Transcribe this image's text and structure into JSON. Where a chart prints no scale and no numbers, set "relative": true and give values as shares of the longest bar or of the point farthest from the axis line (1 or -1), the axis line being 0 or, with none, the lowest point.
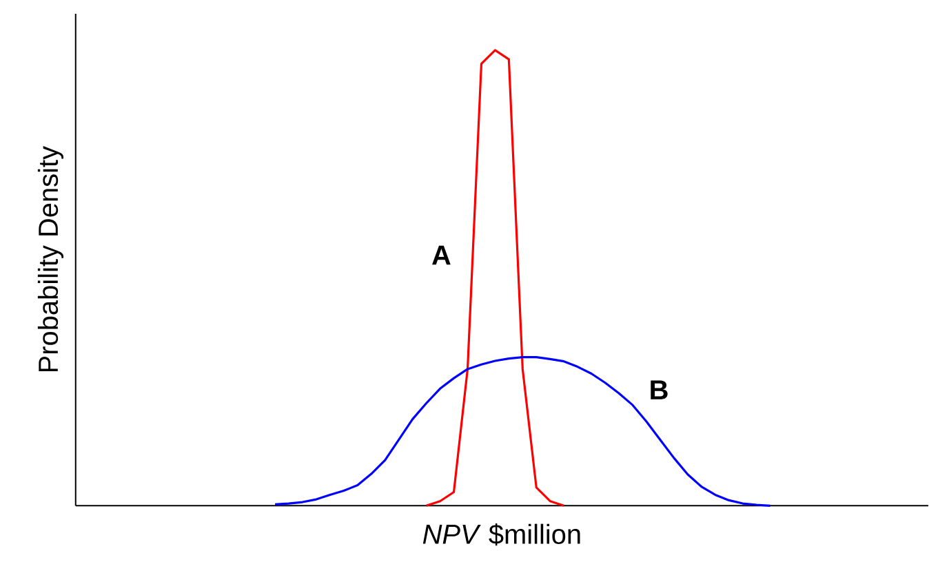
{
  "chart_data": {
    "type": "line",
    "relative": true,
    "xlabel": "*NPV* $million",
    "ylabel": "Probability Density",
    "legend": false,
    "marker": "none",
    "line_style": "solid",
    "categories": [
      null,
      null,
      null,
      null,
      null,
      null,
      null,
      null,
      null,
      null,
      null,
      null,
      null,
      null,
      null,
      null,
      null,
      null,
      null,
      null,
      null,
      null,
      null,
      null,
      null,
      null,
      null,
      null,
      null,
      null,
      null,
      null,
      null,
      null,
      null,
      null,
      null,
      null,
      null,
      null,
      null,
      null,
      null,
      null,
      null,
      null,
      null,
      null,
      null,
      null,
      null,
      null,
      null,
      null,
      null,
      null,
      null,
      null,
      null,
      null,
      null,
      null
    ],
    "series": [
      {
        "name": "A",
        "color": "#ff0000",
        "values": [
          null,
          null,
          null,
          null,
          null,
          null,
          null,
          null,
          null,
          null,
          null,
          null,
          null,
          null,
          null,
          null,
          null,
          null,
          null,
          null,
          null,
          null,
          null,
          null,
          null,
          0.0,
          0.01,
          0.03,
          0.3,
          0.97,
          1.0,
          0.98,
          0.3,
          0.04,
          0.01,
          0.0,
          null,
          null,
          null,
          null,
          null,
          null,
          null,
          null,
          null,
          null,
          null,
          null,
          null,
          null,
          null,
          null,
          null,
          null,
          null,
          null,
          null,
          null,
          null,
          null,
          null,
          null
        ]
      },
      {
        "name": "B",
        "color": "#0000ff",
        "values": [
          null,
          null,
          null,
          null,
          null,
          null,
          null,
          null,
          null,
          null,
          null,
          null,
          null,
          null,
          0.003,
          0.005,
          0.008,
          0.014,
          0.024,
          0.033,
          0.045,
          0.07,
          0.1,
          0.145,
          0.19,
          0.225,
          0.257,
          0.28,
          0.3,
          0.31,
          0.318,
          0.323,
          0.326,
          0.326,
          0.322,
          0.317,
          0.305,
          0.29,
          0.27,
          0.247,
          0.221,
          0.185,
          0.145,
          0.105,
          0.069,
          0.042,
          0.024,
          0.012,
          0.005,
          0.002,
          0.0,
          null,
          null,
          null,
          null,
          null,
          null,
          null,
          null,
          null,
          null,
          null
        ]
      }
    ]
  }
}
